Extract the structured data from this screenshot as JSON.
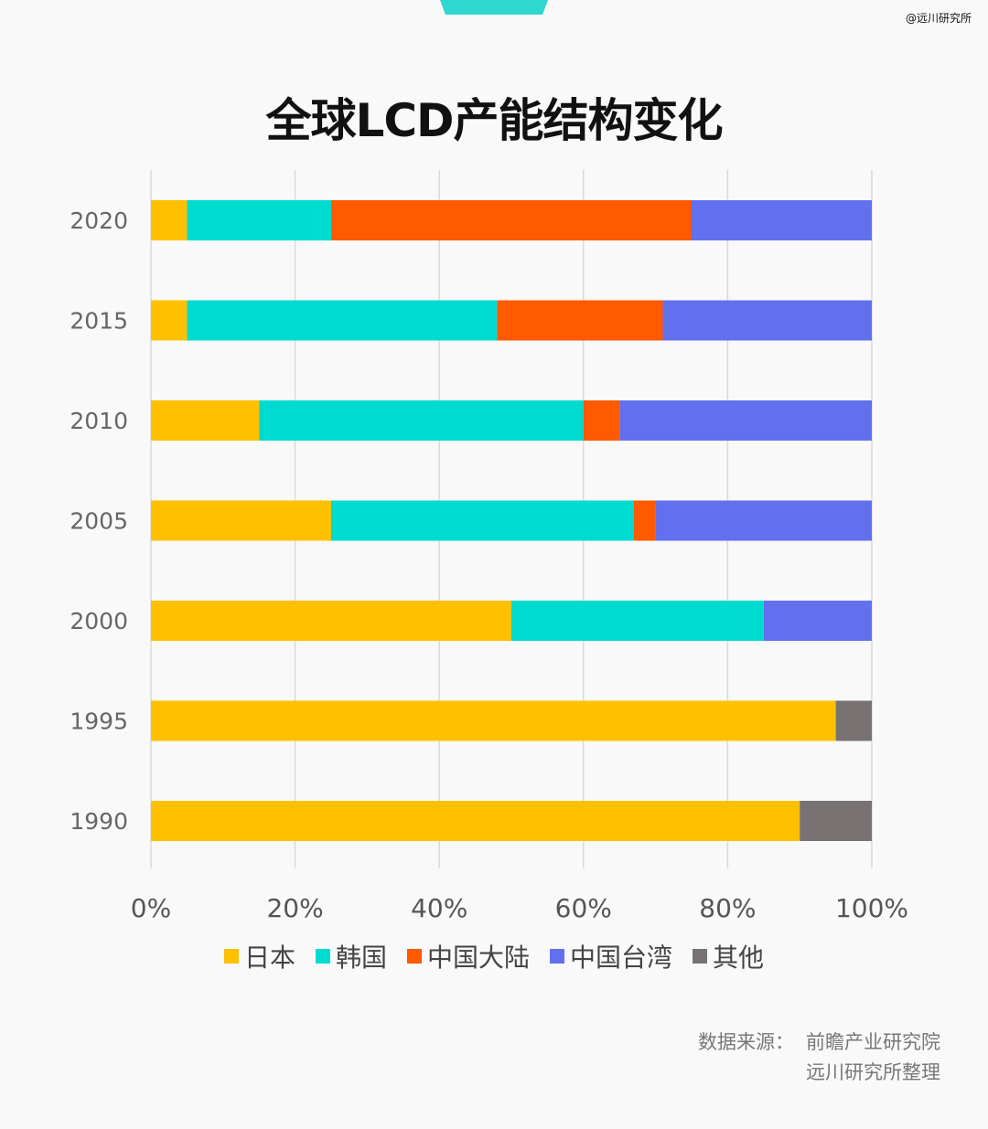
{
  "watermark": "@远川研究所",
  "chart_data": {
    "type": "bar",
    "orientation": "horizontal",
    "stacked": true,
    "title": "全球LCD产能结构变化",
    "categories": [
      "2020",
      "2015",
      "2010",
      "2005",
      "2000",
      "1995",
      "1990"
    ],
    "series": [
      {
        "name": "日本",
        "color": "#ffc000",
        "values": [
          5,
          5,
          15,
          25,
          50,
          95,
          90
        ]
      },
      {
        "name": "韩国",
        "color": "#00dbd0",
        "values": [
          20,
          43,
          45,
          42,
          35,
          0,
          0
        ]
      },
      {
        "name": "中国大陆",
        "color": "#ff5a00",
        "values": [
          50,
          23,
          5,
          3,
          0,
          0,
          0
        ]
      },
      {
        "name": "中国台湾",
        "color": "#6270ee",
        "values": [
          25,
          29,
          35,
          30,
          15,
          0,
          0
        ]
      },
      {
        "name": "其他",
        "color": "#787272",
        "values": [
          0,
          0,
          0,
          0,
          0,
          5,
          10
        ]
      }
    ],
    "xlim": [
      0,
      100
    ],
    "xticks": [
      "0%",
      "20%",
      "40%",
      "60%",
      "80%",
      "100%"
    ],
    "xlabel": "",
    "ylabel": "",
    "grid": true,
    "legend_position": "bottom"
  },
  "source": {
    "label": "数据来源：",
    "line1": "前瞻产业研究院",
    "line2": "远川研究所整理"
  }
}
